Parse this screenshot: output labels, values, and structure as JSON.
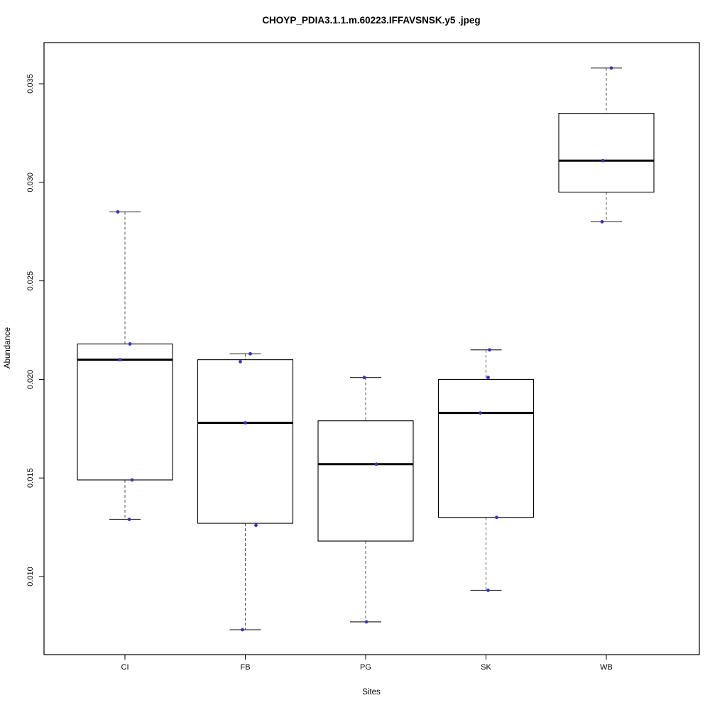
{
  "title": "CHOYP_PDIA3.1.1.m.60223.IFFAVSNSK.y5 .jpeg",
  "chart_data": {
    "type": "boxplot",
    "title": "CHOYP_PDIA3.1.1.m.60223.IFFAVSNSK.y5 .jpeg",
    "xlabel": "Sites",
    "ylabel": "Abundance",
    "categories": [
      "CI",
      "FB",
      "PG",
      "SK",
      "WB"
    ],
    "yticks": [
      0.01,
      0.015,
      0.02,
      0.025,
      0.03,
      0.035
    ],
    "ylim": [
      0.006,
      0.037
    ],
    "grid": false,
    "legend": false,
    "point_color": "#3333cc",
    "box_color": "#000000",
    "whisker_dash_color": "#555555",
    "boxes": [
      {
        "site": "CI",
        "whisker_low": 0.0129,
        "q1": 0.0149,
        "median": 0.021,
        "q3": 0.0218,
        "whisker_high": 0.0285,
        "points": [
          0.0285,
          0.0218,
          0.021,
          0.0149,
          0.0129
        ],
        "jitter": [
          -10,
          7,
          -7,
          10,
          6
        ]
      },
      {
        "site": "FB",
        "whisker_low": 0.0073,
        "q1": 0.0127,
        "median": 0.0178,
        "q3": 0.021,
        "whisker_high": 0.0213,
        "points": [
          0.0213,
          0.0209,
          0.0178,
          0.0126,
          0.0073
        ],
        "jitter": [
          7,
          -7,
          0,
          15,
          -4
        ]
      },
      {
        "site": "PG",
        "whisker_low": 0.0077,
        "q1": 0.0118,
        "median": 0.0157,
        "q3": 0.0179,
        "whisker_high": 0.0201,
        "points": [
          0.0201,
          0.0157,
          0.0077
        ],
        "jitter": [
          -2,
          15,
          1
        ]
      },
      {
        "site": "SK",
        "whisker_low": 0.0093,
        "q1": 0.013,
        "median": 0.0183,
        "q3": 0.02,
        "whisker_high": 0.0215,
        "points": [
          0.0215,
          0.0201,
          0.0183,
          0.013,
          0.0093
        ],
        "jitter": [
          5,
          3,
          -8,
          15,
          3
        ]
      },
      {
        "site": "WB",
        "whisker_low": 0.028,
        "q1": 0.0295,
        "median": 0.0311,
        "q3": 0.0335,
        "whisker_high": 0.0358,
        "points": [
          0.0358,
          0.0311,
          0.028
        ],
        "jitter": [
          7,
          -5,
          -6
        ]
      }
    ]
  }
}
